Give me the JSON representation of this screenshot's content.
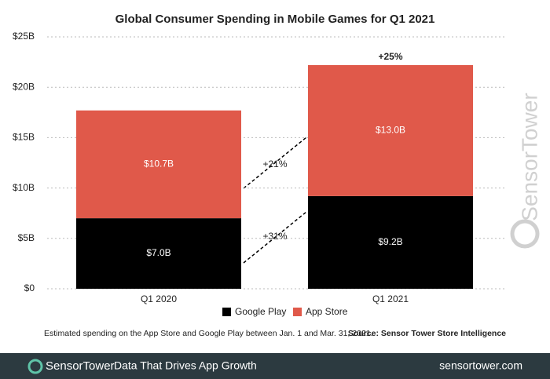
{
  "chart_data": {
    "type": "bar",
    "stacked": true,
    "title": "Global Consumer Spending in Mobile Games for Q1 2021",
    "categories": [
      "Q1 2020",
      "Q1 2021"
    ],
    "series": [
      {
        "name": "Google Play",
        "color": "#000000",
        "values": [
          7.0,
          9.2
        ],
        "value_labels": [
          "$7.0B",
          "$9.2B"
        ]
      },
      {
        "name": "App Store",
        "color": "#e0594a",
        "values": [
          10.7,
          13.0
        ],
        "value_labels": [
          "$10.7B",
          "$13.0B"
        ]
      }
    ],
    "ylim": [
      0,
      25
    ],
    "yticks": [
      {
        "value": 0,
        "label": "$0"
      },
      {
        "value": 5,
        "label": "$5B"
      },
      {
        "value": 10,
        "label": "$10B"
      },
      {
        "value": 15,
        "label": "$15B"
      },
      {
        "value": 20,
        "label": "$20B"
      },
      {
        "value": 25,
        "label": "$25B"
      }
    ],
    "grid": true,
    "annotations": [
      "+25%",
      "+21%",
      "+31%"
    ]
  },
  "footnote": "Estimated spending on the App Store and Google Play between Jan. 1 and Mar. 31, 2021.",
  "source": "Source: Sensor Tower Store Intelligence",
  "watermark": "SensorTower",
  "footer": {
    "brand": "SensorTower",
    "tagline": "Data That Drives App Growth",
    "url": "sensortower.com"
  }
}
